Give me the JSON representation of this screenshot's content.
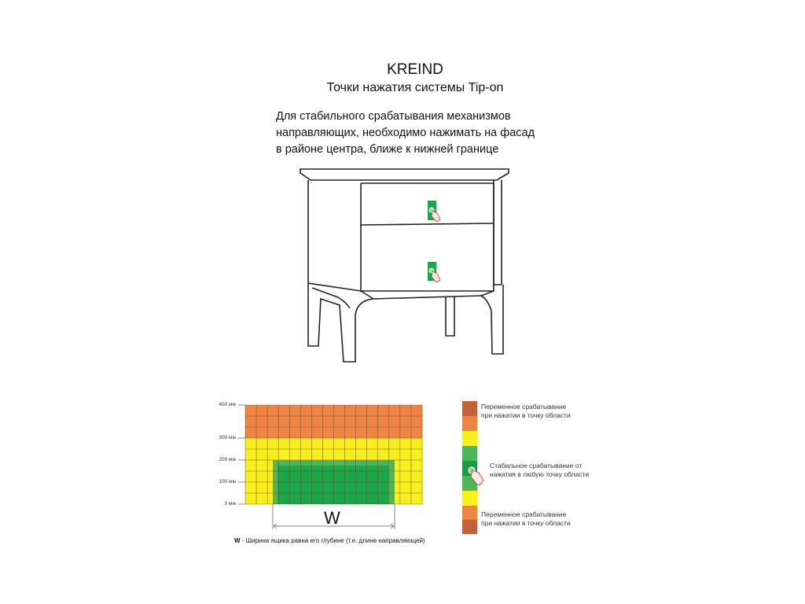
{
  "header": {
    "brand": "KREIND",
    "subtitle": "Точки нажатия системы Tip-on"
  },
  "instruction": {
    "lines": [
      "Для стабильного срабатывания механизмов",
      "направляющих, необходимо нажимать на фасад",
      "в районе центра, ближе к нижней границе"
    ]
  },
  "grid_diagram": {
    "y_ticks": [
      "450 мм",
      "300 мм",
      "200 мм",
      "100 мм",
      "0 мм"
    ],
    "width_label": "W",
    "footnote_bold": "W",
    "footnote_text": " - Ширина ящика равна его глубине (т.е. длине направляющей)",
    "colors": {
      "orange": "#ef8447",
      "yellow": "#f7f01e",
      "green": "#1aa64a",
      "light_green": "#4fb55a",
      "brown": "#c0623a"
    }
  },
  "legend": {
    "items": [
      {
        "line1": "Переменное срабатывание",
        "line2": "при нажатии в точку области"
      },
      {
        "line1": "Стабильное срабатывание от",
        "line2": "нажатия в любую точку области"
      },
      {
        "line1": "Переменное срабатывание",
        "line2": "при нажатии в точку области"
      }
    ],
    "icon": "hand-pointer-icon"
  }
}
